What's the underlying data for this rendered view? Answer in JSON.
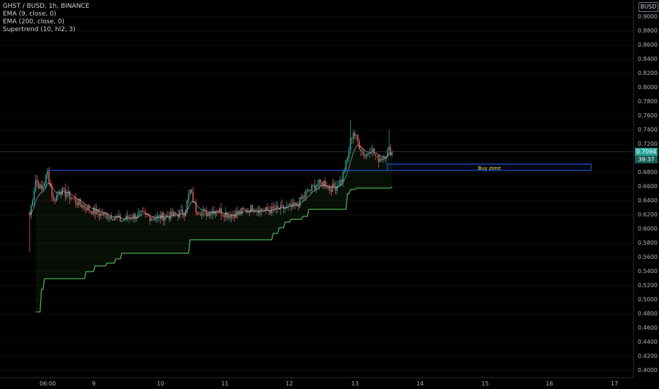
{
  "legend": {
    "symbol_line": "GHST / BUSD, 1h, BINANCE",
    "ema9": "EMA (9, close, 0)",
    "ema200": "EMA (200, close, 0)",
    "supertrend": "Supertrend (10, hl2, 3)"
  },
  "axis": {
    "currency": "BUSD",
    "current_price": "0.7094",
    "countdown": "39:37",
    "y_ticks": [
      "0.9000",
      "0.8800",
      "0.8600",
      "0.8400",
      "0.8200",
      "0.8000",
      "0.7800",
      "0.7600",
      "0.7400",
      "0.7200",
      "0.6800",
      "0.6600",
      "0.6400",
      "0.6200",
      "0.6000",
      "0.5800",
      "0.5600",
      "0.5400",
      "0.5200",
      "0.5000",
      "0.4800",
      "0.4600",
      "0.4400",
      "0.4200",
      "0.4000"
    ],
    "x_ticks": [
      "06:00",
      "9",
      "10",
      "11",
      "12",
      "13",
      "14",
      "15",
      "16",
      "17"
    ]
  },
  "buy_zone": {
    "label": "Buy zone",
    "low": 0.683,
    "high": 0.692
  },
  "colors": {
    "up": "#26a69a",
    "down": "#ef5350",
    "supertrend": "#4caf50",
    "ema": "#d1d4dc",
    "zone_border": "#2962ff",
    "zone_text": "#ffeb3b",
    "bg": "#000000"
  },
  "chart_data": {
    "type": "candlestick",
    "title": "GHST / BUSD, 1h, BINANCE",
    "ylim": [
      0.395,
      0.925
    ],
    "resistance_level": 0.683,
    "current_price": 0.7094,
    "price_path": [
      [
        0,
        0.62
      ],
      [
        4,
        0.67
      ],
      [
        8,
        0.655
      ],
      [
        12,
        0.68
      ],
      [
        16,
        0.64
      ],
      [
        20,
        0.655
      ],
      [
        26,
        0.648
      ],
      [
        32,
        0.638
      ],
      [
        40,
        0.628
      ],
      [
        48,
        0.621
      ],
      [
        56,
        0.618
      ],
      [
        62,
        0.612
      ],
      [
        68,
        0.618
      ],
      [
        76,
        0.62
      ],
      [
        84,
        0.616
      ],
      [
        90,
        0.618
      ],
      [
        98,
        0.62
      ],
      [
        104,
        0.624
      ],
      [
        108,
        0.654
      ],
      [
        112,
        0.628
      ],
      [
        118,
        0.622
      ],
      [
        126,
        0.628
      ],
      [
        134,
        0.62
      ],
      [
        142,
        0.624
      ],
      [
        150,
        0.63
      ],
      [
        158,
        0.626
      ],
      [
        166,
        0.628
      ],
      [
        174,
        0.63
      ],
      [
        180,
        0.634
      ],
      [
        186,
        0.65
      ],
      [
        192,
        0.662
      ],
      [
        198,
        0.666
      ],
      [
        202,
        0.658
      ],
      [
        206,
        0.66
      ],
      [
        210,
        0.67
      ],
      [
        214,
        0.7
      ],
      [
        216,
        0.725
      ],
      [
        218,
        0.738
      ],
      [
        222,
        0.718
      ],
      [
        226,
        0.704
      ],
      [
        230,
        0.715
      ],
      [
        234,
        0.699
      ],
      [
        238,
        0.702
      ],
      [
        242,
        0.712
      ],
      [
        244,
        0.709
      ]
    ],
    "supertrend_steps": [
      [
        4,
        0.483
      ],
      [
        8,
        0.515
      ],
      [
        10,
        0.53
      ],
      [
        36,
        0.53
      ],
      [
        38,
        0.54
      ],
      [
        44,
        0.548
      ],
      [
        52,
        0.552
      ],
      [
        58,
        0.558
      ],
      [
        62,
        0.566
      ],
      [
        104,
        0.566
      ],
      [
        108,
        0.585
      ],
      [
        160,
        0.585
      ],
      [
        164,
        0.594
      ],
      [
        168,
        0.602
      ],
      [
        172,
        0.61
      ],
      [
        176,
        0.614
      ],
      [
        184,
        0.618
      ],
      [
        188,
        0.628
      ],
      [
        212,
        0.628
      ],
      [
        214,
        0.65
      ],
      [
        216,
        0.656
      ],
      [
        220,
        0.658
      ],
      [
        238,
        0.658
      ],
      [
        244,
        0.66
      ]
    ]
  }
}
